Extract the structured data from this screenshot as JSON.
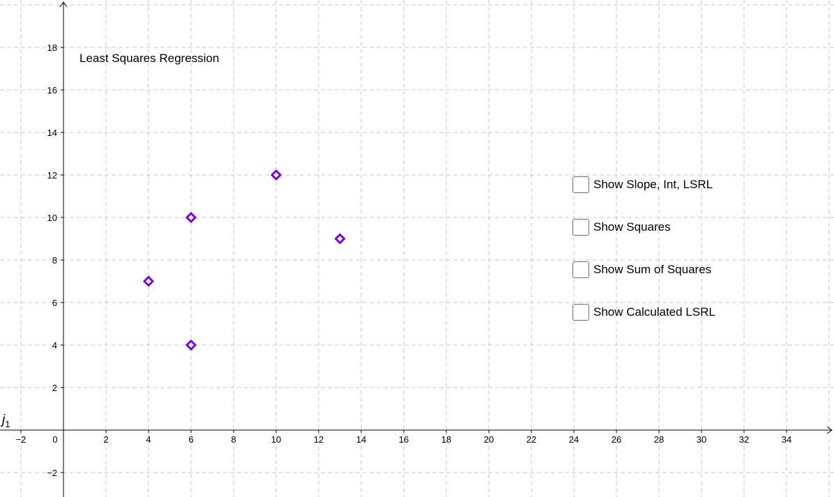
{
  "title": "Least Squares Regression",
  "line_label": {
    "name": "j",
    "sub": "1"
  },
  "checkboxes": [
    {
      "label": "Show Slope, Int, LSRL",
      "checked": false
    },
    {
      "label": "Show Squares",
      "checked": false
    },
    {
      "label": "Show Sum of Squares",
      "checked": false
    },
    {
      "label": "Show Calculated LSRL",
      "checked": false
    }
  ],
  "chart_data": {
    "type": "scatter",
    "title": "",
    "xlabel": "",
    "ylabel": "",
    "xlim": [
      -3,
      36.5
    ],
    "ylim": [
      -3,
      20.2
    ],
    "x_ticks": [
      -2,
      0,
      2,
      4,
      6,
      8,
      10,
      12,
      14,
      16,
      18,
      20,
      22,
      24,
      26,
      28,
      30,
      32,
      34
    ],
    "y_ticks": [
      -2,
      2,
      4,
      6,
      8,
      10,
      12,
      14,
      16,
      18
    ],
    "grid": true,
    "grid_style": "dashed",
    "marker": "diamond",
    "series": [
      {
        "color": "#7a00e6",
        "points": [
          [
            4,
            7
          ],
          [
            6,
            10
          ],
          [
            6,
            4
          ],
          [
            10,
            12
          ],
          [
            13,
            9
          ]
        ]
      }
    ]
  },
  "colors": {
    "grid": "#c8c8c8",
    "axis": "#000000",
    "point": "#7a00e6"
  }
}
